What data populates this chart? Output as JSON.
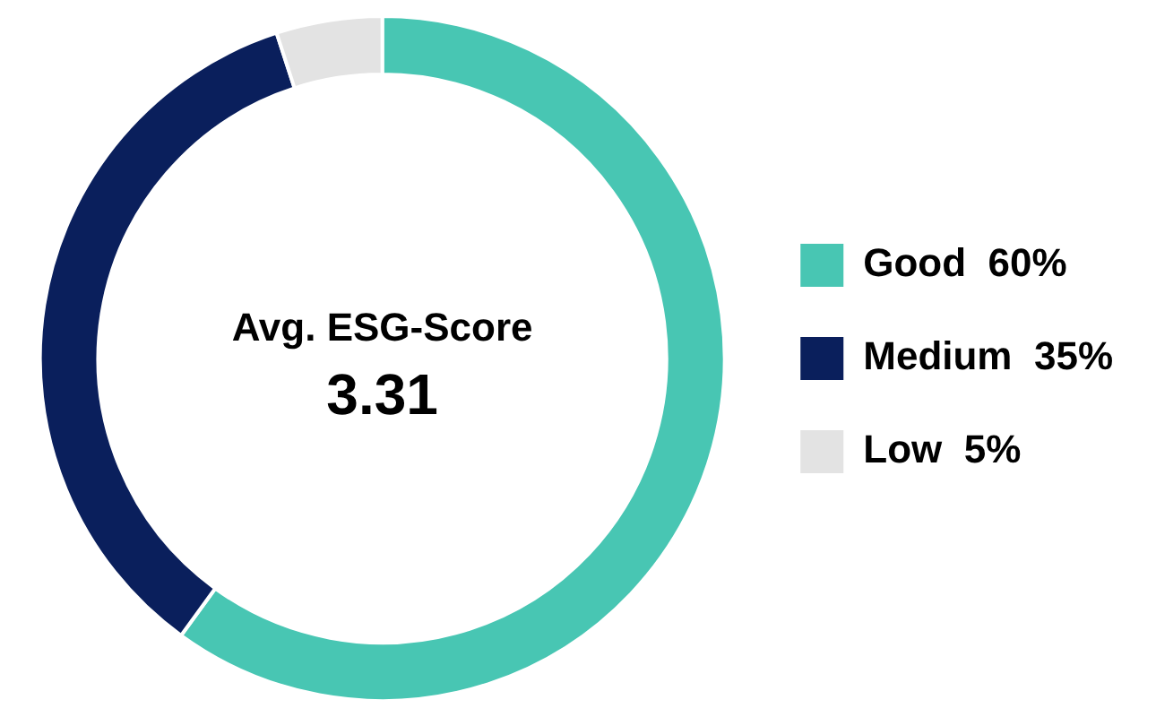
{
  "chart_data": {
    "type": "donut",
    "categories": [
      "Good",
      "Medium",
      "Low"
    ],
    "values": [
      60,
      35,
      5
    ],
    "colors": [
      "#48c6b3",
      "#0a1f5c",
      "#e3e3e3"
    ],
    "value_labels": [
      "60%",
      "35%",
      "5%"
    ],
    "annotations": [
      "Avg. ESG-Score",
      "3.31"
    ],
    "legend": "right"
  }
}
